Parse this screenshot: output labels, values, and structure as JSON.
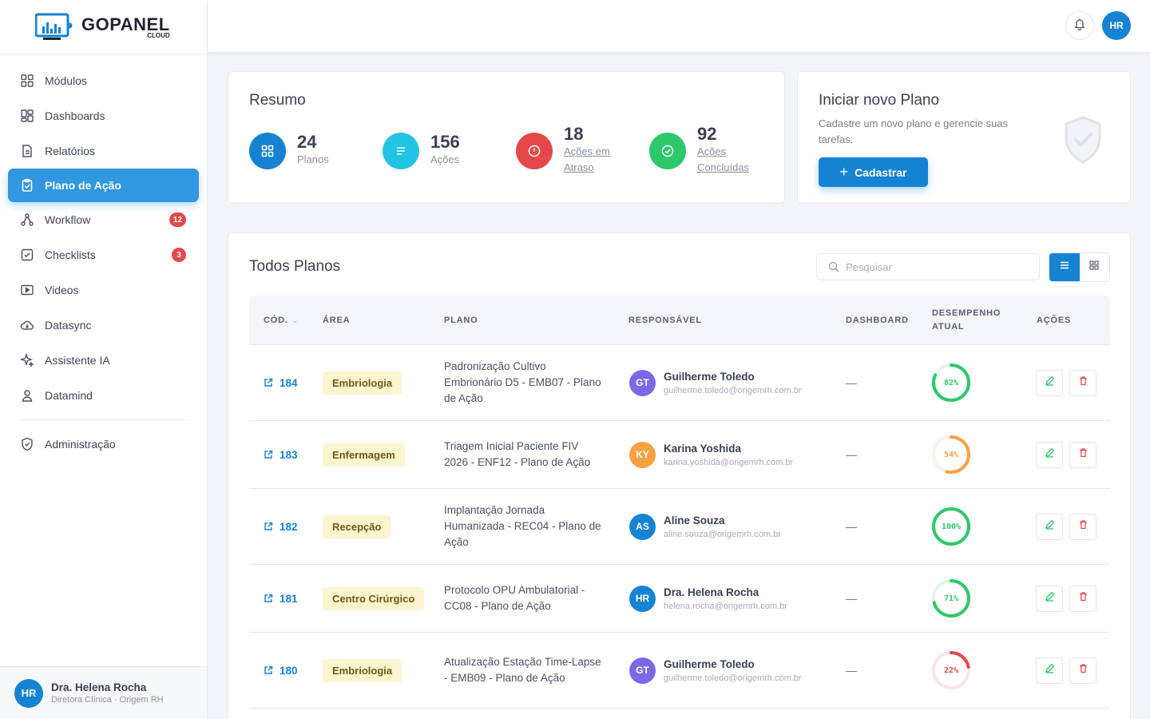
{
  "brand": {
    "name": "GOPANEL",
    "sub": "CLOUD"
  },
  "colors": {
    "primary": "#1583d1",
    "active_nav": "#3197e0",
    "badge": "#e4484a",
    "success": "#2dc86a",
    "warning": "#f7a142",
    "danger": "#e4484a",
    "info": "#22c4e6"
  },
  "sidebar": {
    "items": [
      {
        "label": "Módulos",
        "icon": "grid-icon"
      },
      {
        "label": "Dashboards",
        "icon": "dashboard-icon"
      },
      {
        "label": "Relatórios",
        "icon": "report-icon"
      },
      {
        "label": "Plano de Ação",
        "icon": "clipboard-check-icon",
        "active": true
      },
      {
        "label": "Workflow",
        "icon": "workflow-icon",
        "badge": "12"
      },
      {
        "label": "Checklists",
        "icon": "checkbox-icon",
        "badge": "3"
      },
      {
        "label": "Videos",
        "icon": "video-icon"
      },
      {
        "label": "Datasync",
        "icon": "cloud-sync-icon"
      },
      {
        "label": "Assistente IA",
        "icon": "sparkle-icon"
      },
      {
        "label": "Datamind",
        "icon": "user-icon"
      },
      {
        "label": "Administração",
        "icon": "shield-icon"
      }
    ],
    "user": {
      "initials": "HR",
      "name": "Dra. Helena Rocha",
      "role": "Diretora Clínica · Origem RH"
    }
  },
  "topbar": {
    "avatar_initials": "HR"
  },
  "resumo": {
    "title": "Resumo",
    "stats": [
      {
        "value": "24",
        "label": "Planos",
        "color": "#1583d1",
        "icon": "grid-icon"
      },
      {
        "value": "156",
        "label": "Ações",
        "color": "#22c4e6",
        "icon": "list-icon"
      },
      {
        "value": "18",
        "label": "Ações em Atraso",
        "color": "#e4484a",
        "icon": "alert-icon"
      },
      {
        "value": "92",
        "label": "Ações Concluídas",
        "color": "#2dc86a",
        "icon": "check-circle-icon"
      }
    ]
  },
  "novo": {
    "title": "Iniciar novo Plano",
    "desc": "Cadastre um novo plano e gerencie suas tarefas.",
    "button": "Cadastrar"
  },
  "planos": {
    "title": "Todos Planos",
    "search_placeholder": "Pesquisar",
    "headers": {
      "cod": "CÓD.",
      "area": "ÁREA",
      "plano": "PLANO",
      "responsavel": "RESPONSÁVEL",
      "dashboard": "DASHBOARD",
      "desempenho": "DESEMPENHO ATUAL",
      "acoes": "AÇÕES"
    },
    "rows": [
      {
        "code": "184",
        "area": "Embriologia",
        "plano": "Padronização Cultivo Embrionário D5 - EMB07 - Plano de Ação",
        "initials": "GT",
        "avatar_color": "#7b68e8",
        "name": "Guilherme Toledo",
        "email": "guilherme.toledo@origemrh.com.br",
        "dashboard": "—",
        "perf": 82,
        "perf_label": "82%",
        "perf_color": "#2dc86a"
      },
      {
        "code": "183",
        "area": "Enfermagem",
        "plano": "Triagem Inicial Paciente FIV 2026 - ENF12 - Plano de Ação",
        "initials": "KY",
        "avatar_color": "#f7a142",
        "name": "Karina Yoshida",
        "email": "karina.yoshida@origemrh.com.br",
        "dashboard": "—",
        "perf": 54,
        "perf_label": "54%",
        "perf_color": "#f7a142"
      },
      {
        "code": "182",
        "area": "Recepção",
        "plano": "Implantação Jornada Humanizada - REC04 - Plano de Ação",
        "initials": "AS",
        "avatar_color": "#1583d1",
        "name": "Aline Souza",
        "email": "aline.souza@origemrh.com.br",
        "dashboard": "—",
        "perf": 100,
        "perf_label": "100%",
        "perf_color": "#2dc86a"
      },
      {
        "code": "181",
        "area": "Centro Cirúrgico",
        "plano": "Protocolo OPU Ambulatorial - CC08 - Plano de Ação",
        "initials": "HR",
        "avatar_color": "#1583d1",
        "name": "Dra. Helena Rocha",
        "email": "helena.rocha@origemrh.com.br",
        "dashboard": "—",
        "perf": 71,
        "perf_label": "71%",
        "perf_color": "#2dc86a"
      },
      {
        "code": "180",
        "area": "Embriologia",
        "plano": "Atualização Estação Time-Lapse - EMB09 - Plano de Ação",
        "initials": "GT",
        "avatar_color": "#7b68e8",
        "name": "Guilherme Toledo",
        "email": "guilherme.toledo@origemrh.com.br",
        "dashboard": "—",
        "perf": 22,
        "perf_label": "22%",
        "perf_color": "#e4484a"
      }
    ]
  }
}
